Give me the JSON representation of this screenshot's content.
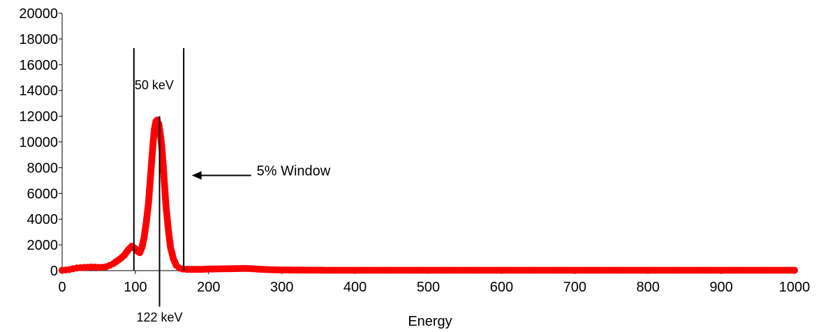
{
  "chart_data": {
    "type": "scatter",
    "title": "",
    "xlabel": "Energy",
    "ylabel": "",
    "xlim": [
      0,
      1000
    ],
    "ylim": [
      0,
      20000
    ],
    "x_ticks": [
      0,
      100,
      200,
      300,
      400,
      500,
      600,
      700,
      800,
      900,
      1000
    ],
    "y_ticks": [
      0,
      2000,
      4000,
      6000,
      8000,
      10000,
      12000,
      14000,
      16000,
      18000,
      20000
    ],
    "grid": false,
    "series": [
      {
        "color": "#ff0000",
        "points": [
          [
            0,
            30
          ],
          [
            5,
            50
          ],
          [
            10,
            80
          ],
          [
            15,
            150
          ],
          [
            20,
            200
          ],
          [
            25,
            230
          ],
          [
            30,
            250
          ],
          [
            35,
            260
          ],
          [
            40,
            280
          ],
          [
            45,
            270
          ],
          [
            50,
            250
          ],
          [
            55,
            260
          ],
          [
            60,
            300
          ],
          [
            65,
            400
          ],
          [
            70,
            550
          ],
          [
            75,
            750
          ],
          [
            80,
            950
          ],
          [
            85,
            1200
          ],
          [
            90,
            1600
          ],
          [
            95,
            1900
          ],
          [
            100,
            1700
          ],
          [
            103,
            1500
          ],
          [
            106,
            1400
          ],
          [
            109,
            1800
          ],
          [
            112,
            2600
          ],
          [
            115,
            3800
          ],
          [
            118,
            5300
          ],
          [
            120,
            6800
          ],
          [
            122,
            8300
          ],
          [
            124,
            9800
          ],
          [
            126,
            11000
          ],
          [
            128,
            11600
          ],
          [
            130,
            11700
          ],
          [
            132,
            11400
          ],
          [
            134,
            10600
          ],
          [
            136,
            9700
          ],
          [
            138,
            8200
          ],
          [
            140,
            6500
          ],
          [
            142,
            4900
          ],
          [
            145,
            3200
          ],
          [
            148,
            1800
          ],
          [
            152,
            900
          ],
          [
            156,
            400
          ],
          [
            160,
            200
          ],
          [
            165,
            120
          ],
          [
            170,
            100
          ],
          [
            180,
            100
          ],
          [
            190,
            100
          ],
          [
            200,
            120
          ],
          [
            210,
            130
          ],
          [
            220,
            140
          ],
          [
            230,
            150
          ],
          [
            240,
            160
          ],
          [
            250,
            170
          ],
          [
            260,
            150
          ],
          [
            270,
            110
          ],
          [
            280,
            80
          ],
          [
            290,
            60
          ],
          [
            300,
            50
          ],
          [
            320,
            40
          ],
          [
            340,
            35
          ],
          [
            360,
            30
          ],
          [
            380,
            30
          ],
          [
            400,
            30
          ],
          [
            420,
            30
          ],
          [
            440,
            30
          ],
          [
            460,
            30
          ],
          [
            480,
            30
          ],
          [
            500,
            30
          ],
          [
            520,
            30
          ],
          [
            540,
            30
          ],
          [
            560,
            30
          ],
          [
            580,
            30
          ],
          [
            600,
            30
          ],
          [
            620,
            30
          ],
          [
            640,
            30
          ],
          [
            660,
            30
          ],
          [
            680,
            30
          ],
          [
            700,
            30
          ],
          [
            720,
            30
          ],
          [
            740,
            30
          ],
          [
            760,
            30
          ],
          [
            780,
            30
          ],
          [
            800,
            30
          ],
          [
            820,
            30
          ],
          [
            840,
            30
          ],
          [
            860,
            30
          ],
          [
            880,
            30
          ],
          [
            900,
            30
          ],
          [
            920,
            30
          ],
          [
            940,
            30
          ],
          [
            960,
            30
          ],
          [
            980,
            30
          ],
          [
            1000,
            30
          ]
        ]
      }
    ],
    "vertical_lines": [
      {
        "x": 98,
        "y_top": 17300,
        "y_bottom": 0
      },
      {
        "x": 133,
        "y_top": 12000,
        "y_bottom": -2800
      },
      {
        "x": 166,
        "y_top": 17300,
        "y_bottom": 0
      }
    ],
    "annotations": [
      {
        "text": "50 keV",
        "x": 99,
        "y": 14100
      },
      {
        "text": "122 keV",
        "x": 133,
        "y": -3950
      },
      {
        "text": "5% Window",
        "x": 258,
        "y": 7400
      }
    ],
    "arrow": {
      "from_x": 258,
      "to_x": 177,
      "y": 7400
    }
  }
}
